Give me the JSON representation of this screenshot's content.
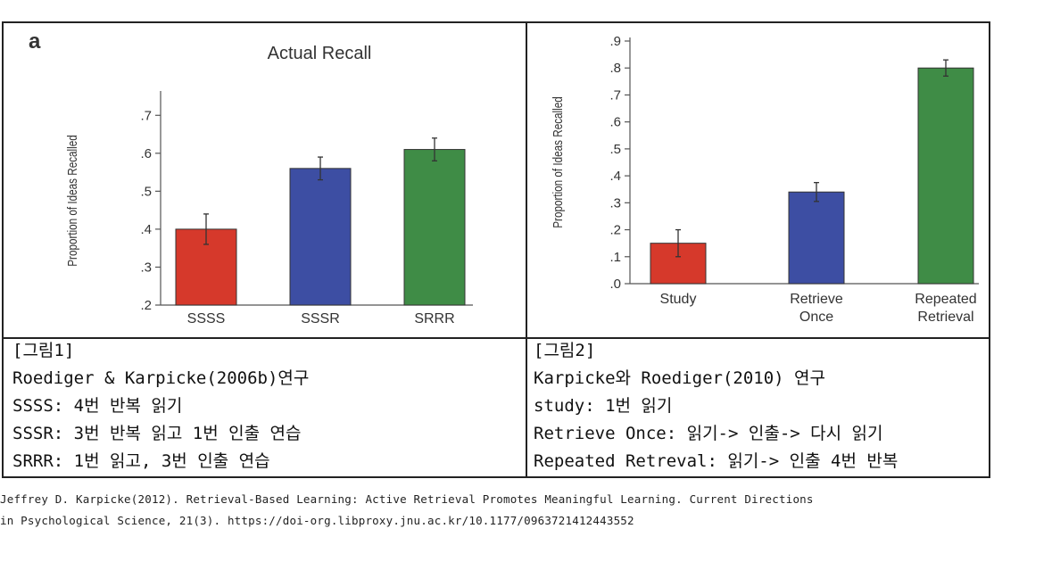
{
  "chart_data": [
    {
      "type": "bar",
      "panel_label": "a",
      "title": "Actual Recall",
      "ylabel": "Proportion of Ideas Recalled",
      "xlabel": "",
      "ylim": [
        0.2,
        0.75
      ],
      "yticks": [
        ".2",
        ".3",
        ".4",
        ".5",
        ".6",
        ".7"
      ],
      "ytick_values": [
        0.2,
        0.3,
        0.4,
        0.5,
        0.6,
        0.7
      ],
      "categories": [
        "SSSS",
        "SSSR",
        "SRRR"
      ],
      "values": [
        0.4,
        0.56,
        0.61
      ],
      "errors": [
        0.04,
        0.03,
        0.03
      ],
      "colors": [
        "#d6392b",
        "#3d4ea3",
        "#3f8c46"
      ],
      "grid": false
    },
    {
      "type": "bar",
      "title": "",
      "ylabel": "Proportion of Ideas Recalled",
      "xlabel": "",
      "ylim": [
        0.0,
        0.9
      ],
      "yticks": [
        ".0",
        ".1",
        ".2",
        ".3",
        ".4",
        ".5",
        ".6",
        ".7",
        ".8",
        ".9"
      ],
      "ytick_values": [
        0.0,
        0.1,
        0.2,
        0.3,
        0.4,
        0.5,
        0.6,
        0.7,
        0.8,
        0.9
      ],
      "categories": [
        [
          "Study"
        ],
        [
          "Retrieve",
          "Once"
        ],
        [
          "Repeated",
          "Retrieval"
        ]
      ],
      "values": [
        0.15,
        0.34,
        0.8
      ],
      "errors": [
        0.05,
        0.035,
        0.03
      ],
      "colors": [
        "#d6392b",
        "#3d4ea3",
        "#3f8c46"
      ],
      "grid": false
    }
  ],
  "captions": {
    "left": [
      "[그림1]",
      "Roediger & Karpicke(2006b)연구",
      "SSSS: 4번 반복 읽기",
      "SSSR: 3번 반복 읽고 1번 인출 연습",
      "SRRR: 1번 읽고, 3번 인출 연습"
    ],
    "right": [
      "[그림2]",
      "Karpicke와 Roediger(2010) 연구",
      "study: 1번 읽기",
      "Retrieve Once: 읽기-> 인출-> 다시 읽기",
      "Repeated Retreval: 읽기-> 인출 4번 반복"
    ]
  },
  "citation": {
    "line1": "Jeffrey D. Karpicke(2012). Retrieval-Based Learning: Active Retrieval Promotes Meaningful Learning. Current Directions",
    "line2": "in Psychological Science, 21(3). https://doi-org.libproxy.jnu.ac.kr/10.1177/0963721412443552"
  }
}
